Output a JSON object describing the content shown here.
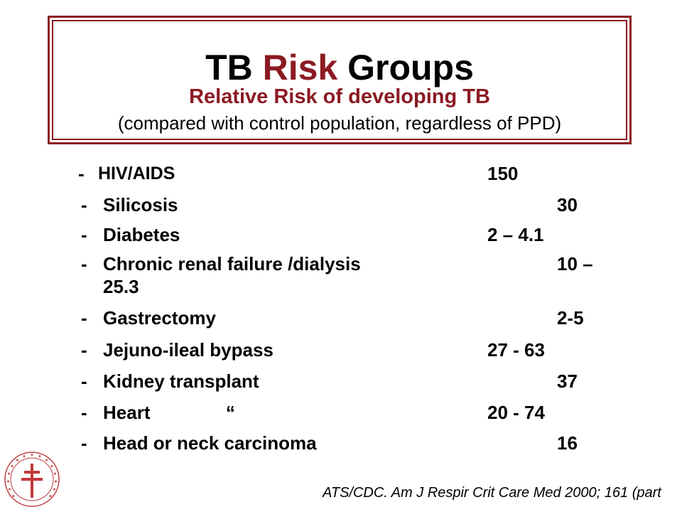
{
  "title": {
    "part1": "TB ",
    "part2": "Risk",
    "part3": " Groups",
    "subtitle": "Relative Risk of developing TB",
    "note": "(compared with control population, regardless of PPD)"
  },
  "risk_groups": [
    {
      "dash": "- ",
      "label": "HIV/AIDS",
      "value": "150"
    },
    {
      "dash": "-",
      "label": "Silicosis",
      "value": "30"
    },
    {
      "dash": "-",
      "label": "Diabetes",
      "value": "2 – 4.1"
    },
    {
      "dash": "-",
      "label": "Chronic renal failure /dialysis",
      "value": "10 –",
      "value_wrap": "25.3"
    },
    {
      "dash": "-",
      "label": "Gastrectomy",
      "value": "2-5"
    },
    {
      "dash": "-",
      "label": "Jejuno-ileal bypass",
      "value": "27 - 63"
    },
    {
      "dash": "-",
      "label": "Kidney transplant",
      "value": "37"
    },
    {
      "dash": "-",
      "label": "Heart",
      "ditto": "“",
      "value": "20 - 74"
    },
    {
      "dash": "-",
      "label": "Head or neck carcinoma",
      "value": "16"
    }
  ],
  "citation": "ATS/CDC. Am J Respir Crit Care Med 2000; 161 (part",
  "colors": {
    "accent": "#8b1a22",
    "logo": "#c0393b"
  },
  "logo": {
    "icon": "cross-of-lorraine-icon"
  }
}
